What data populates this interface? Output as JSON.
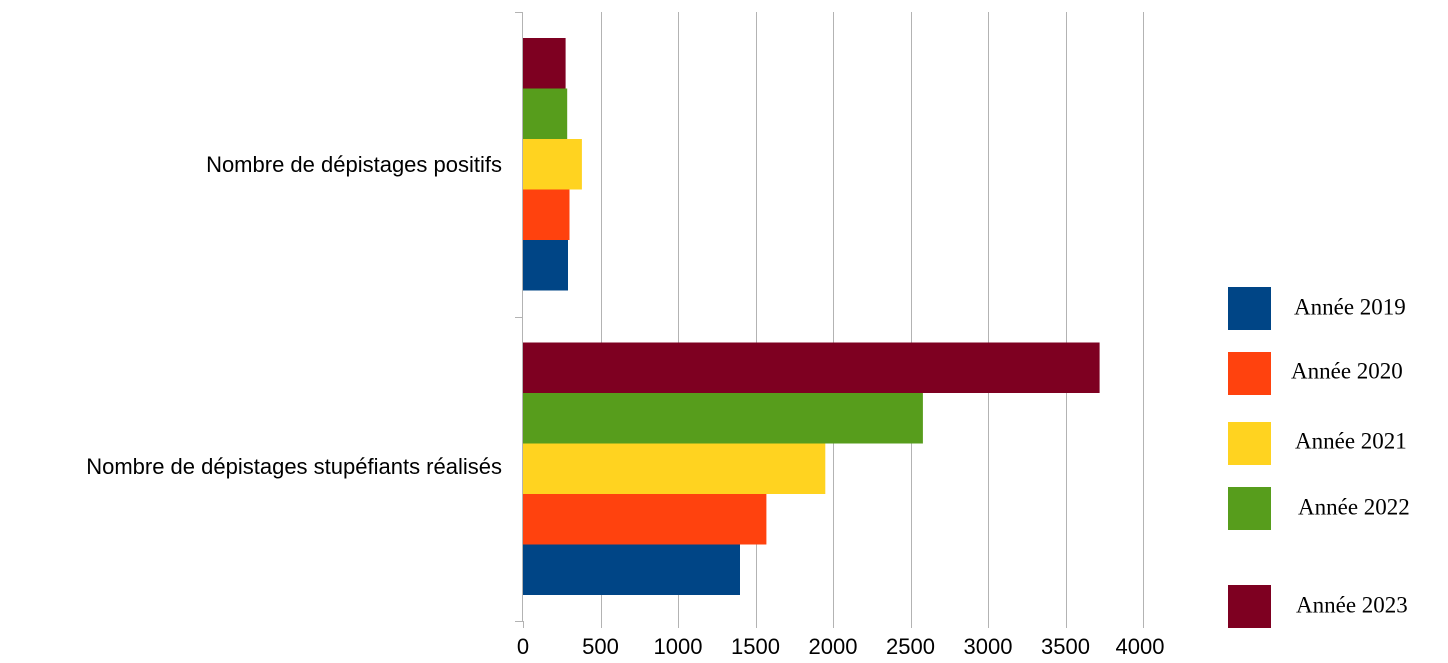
{
  "chart_data": {
    "type": "bar",
    "orientation": "horizontal",
    "title": "",
    "xlabel": "",
    "ylabel": "",
    "categories": [
      "Nombre de dépistages stupéfiants réalisés",
      "Nombre de dépistages positifs"
    ],
    "series": [
      {
        "name": "Année 2019",
        "color": "#004586",
        "values": [
          1400,
          290
        ]
      },
      {
        "name": "Année 2020",
        "color": "#FF420E",
        "values": [
          1570,
          300
        ]
      },
      {
        "name": "Année 2021",
        "color": "#FFD320",
        "values": [
          1950,
          380
        ]
      },
      {
        "name": "Année 2022",
        "color": "#579D1C",
        "values": [
          2580,
          285
        ]
      },
      {
        "name": "Année 2023",
        "color": "#7E0021",
        "values": [
          3720,
          275
        ]
      }
    ],
    "xlim": [
      0,
      4000
    ],
    "xticks": [
      "0",
      "500",
      "1000",
      "1500",
      "2000",
      "2500",
      "3000",
      "3500",
      "4000"
    ],
    "grid": "vertical",
    "legend_position": "right"
  }
}
